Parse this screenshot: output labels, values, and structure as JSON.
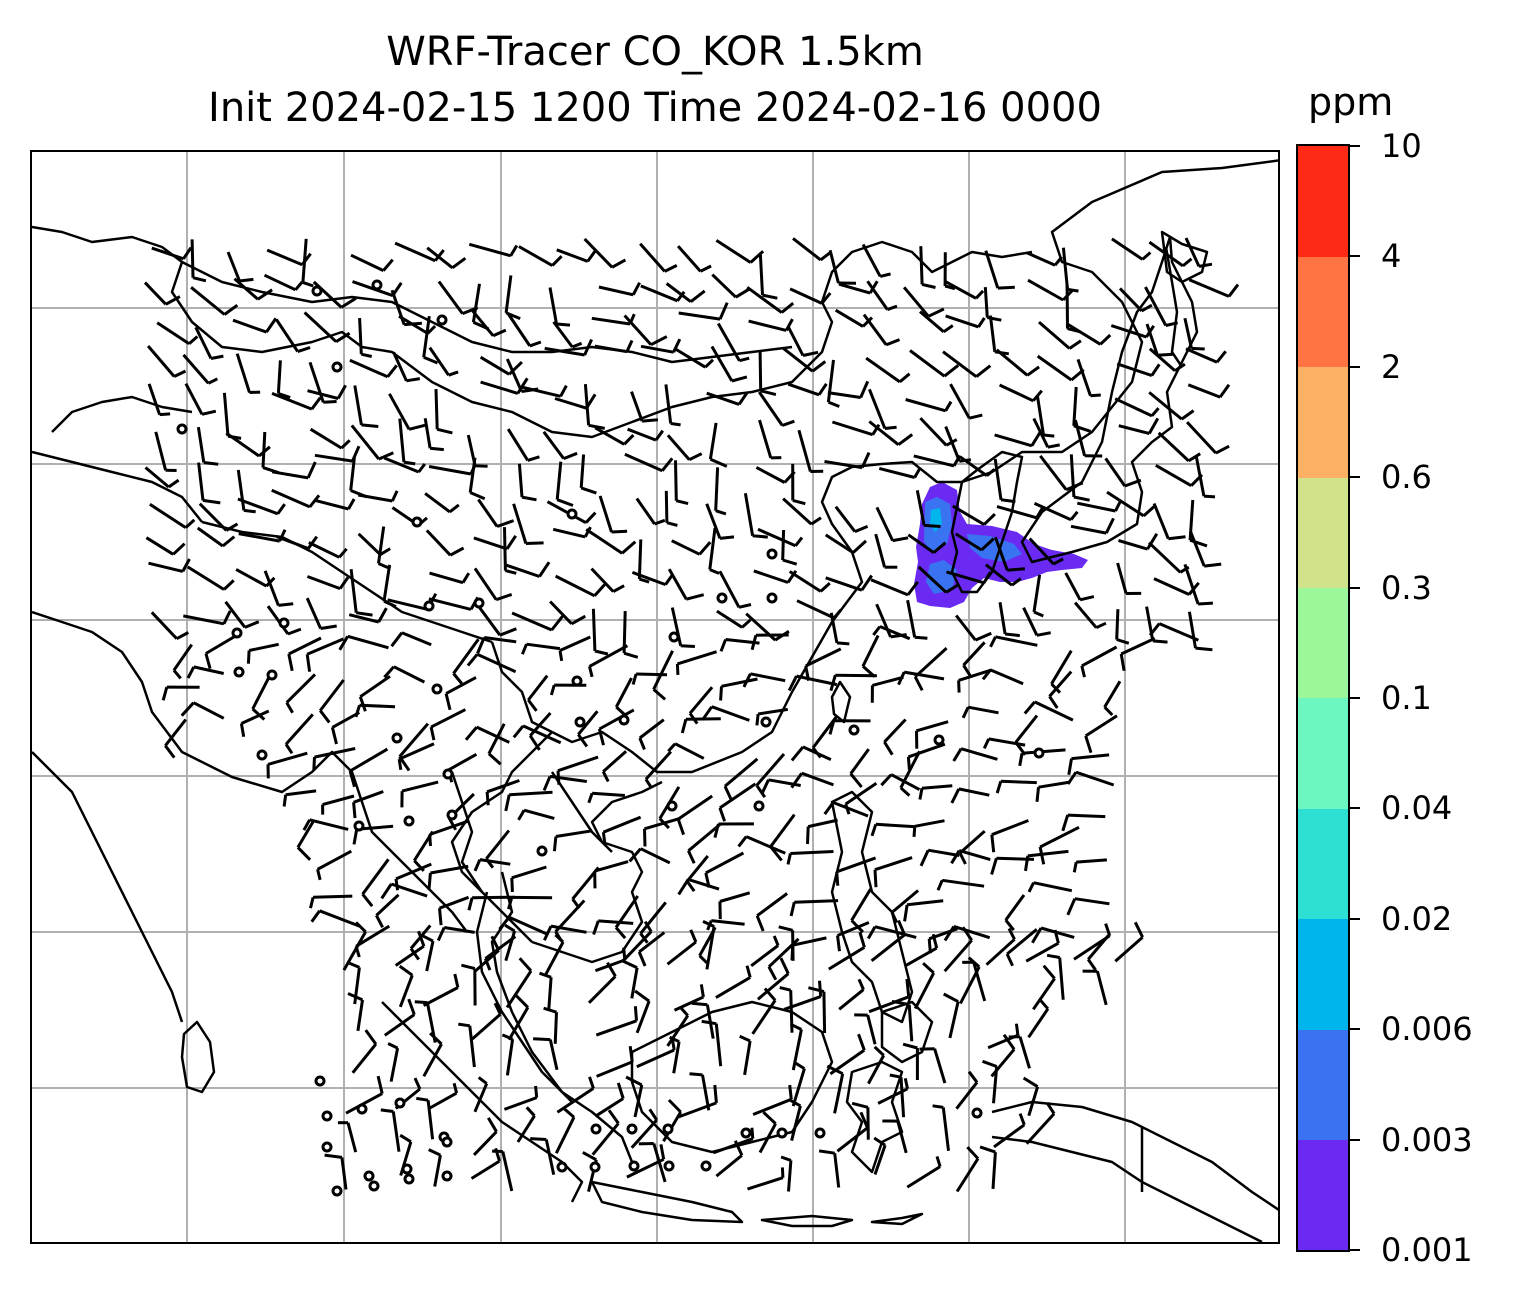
{
  "title": {
    "line1": "WRF-Tracer CO_KOR 1.5km",
    "line2": "Init 2024-02-15 1200 Time 2024-02-16 0000"
  },
  "colorbar": {
    "label": "ppm",
    "ticks": [
      "0.001",
      "0.003",
      "0.006",
      "0.02",
      "0.04",
      "0.1",
      "0.3",
      "0.6",
      "2",
      "4",
      "10"
    ],
    "colors": [
      "#6a2af2",
      "#3a73f2",
      "#00b4ec",
      "#2ee0d3",
      "#6cf7c0",
      "#9cf79a",
      "#d0e38a",
      "#fcb064",
      "#ff7442",
      "#ff2a16"
    ]
  },
  "map": {
    "grid": "on",
    "tracer_color": "#6a2af2",
    "tracer_secondary_color": "#3a73f2"
  }
}
